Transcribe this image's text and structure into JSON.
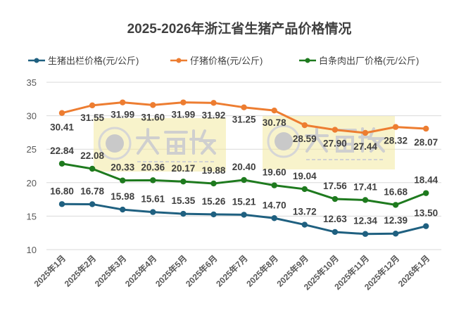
{
  "chart_data": {
    "type": "line",
    "title": "2025-2026年浙江省生猪产品价格情况",
    "categories": [
      "2025年1月",
      "2025年2月",
      "2025年3月",
      "2025年4月",
      "2025年5月",
      "2025年6月",
      "2025年7月",
      "2025年8月",
      "2025年9月",
      "2025年10月",
      "2025年11月",
      "2025年12月",
      "2026年1月"
    ],
    "series": [
      {
        "name": "生猪出栏价格(元/公斤)",
        "color": "#1f6080",
        "values": [
          16.8,
          16.78,
          15.98,
          15.61,
          15.35,
          15.26,
          15.21,
          14.7,
          13.72,
          12.63,
          12.34,
          12.39,
          13.5
        ]
      },
      {
        "name": "仔猪价格(元/公斤)",
        "color": "#ed7d31",
        "values": [
          30.41,
          31.55,
          31.99,
          31.6,
          31.99,
          31.92,
          31.25,
          30.78,
          28.59,
          27.9,
          27.44,
          28.32,
          28.07
        ]
      },
      {
        "name": "白条肉出厂价格(元/公斤)",
        "color": "#1e7a1e",
        "values": [
          22.84,
          22.08,
          20.33,
          20.36,
          20.17,
          19.88,
          20.4,
          19.6,
          19.04,
          17.56,
          17.41,
          16.68,
          18.44
        ]
      }
    ],
    "ylim": [
      10,
      35
    ],
    "yticks": [
      10,
      15,
      20,
      25,
      30,
      35
    ],
    "grid": true,
    "legend": "top",
    "xlabel": "",
    "ylabel": ""
  },
  "watermark": {
    "brand": "大畜牧",
    "url": "www.dxumu.com"
  }
}
